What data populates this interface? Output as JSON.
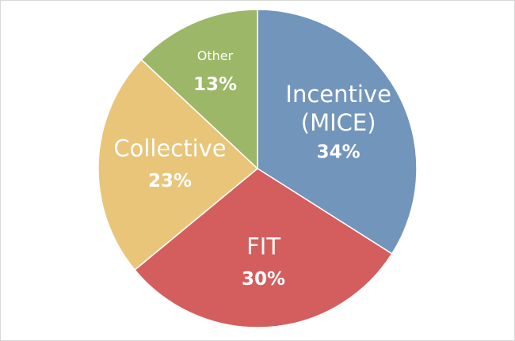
{
  "chart_data": {
    "type": "pie",
    "title": "",
    "slices": [
      {
        "label_lines": [
          "Incentive",
          "(MICE)"
        ],
        "value": 34,
        "value_label": "34%",
        "color": "#7295BC"
      },
      {
        "label_lines": [
          "FIT"
        ],
        "value": 30,
        "value_label": "30%",
        "color": "#D45E5D"
      },
      {
        "label_lines": [
          "Collective"
        ],
        "value": 23,
        "value_label": "23%",
        "color": "#E9C57A"
      },
      {
        "label_lines": [
          "Other"
        ],
        "value": 13,
        "value_label": "13%",
        "color": "#9BB767"
      }
    ],
    "start_angle": "12 o'clock",
    "direction": "clockwise",
    "slice_border_color": "#ffffff",
    "legend": "none",
    "data_labels": "inside"
  }
}
